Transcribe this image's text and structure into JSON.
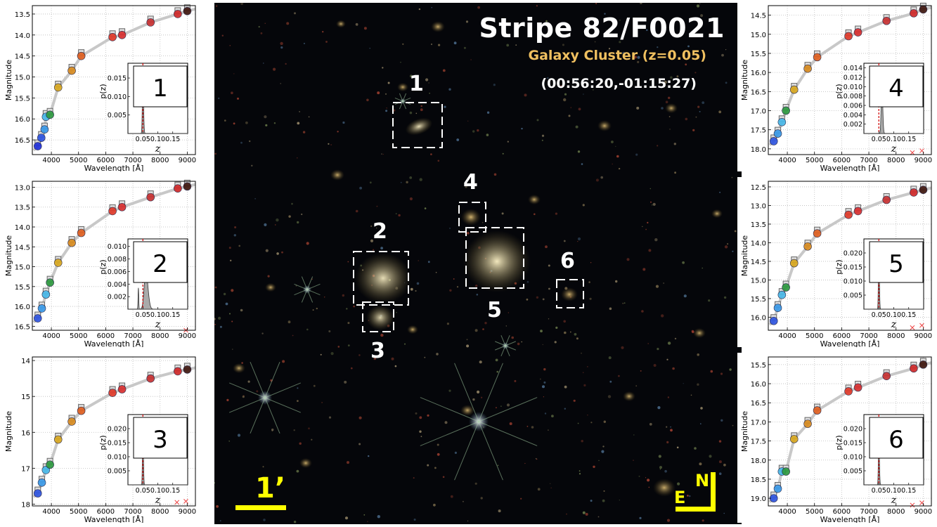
{
  "image": {
    "title": "Stripe 82/F0021",
    "subtitle": "Galaxy Cluster (z=0.05)",
    "coords": "(00:56:20,-01:15:27)",
    "scale_label": "1’",
    "compass_n": "N",
    "compass_e": "E",
    "labels": [
      "1",
      "2",
      "3",
      "4",
      "5",
      "6"
    ]
  },
  "chart_data": [
    {
      "type": "scatter",
      "id": "1",
      "inset_label": "1",
      "xlabel": "Wavelength [Å]",
      "ylabel": "Magnitude",
      "ylim": [
        16.85,
        13.3
      ],
      "yticks": [
        "13.5",
        "14.0",
        "14.5",
        "15.0",
        "15.5",
        "16.0",
        "16.5"
      ],
      "ytick_values": [
        13.5,
        14.0,
        14.5,
        15.0,
        15.5,
        16.0,
        16.5
      ],
      "inset": {
        "xlabel": "z",
        "ylabel": "p(z)",
        "yticks": [
          "0.005",
          "0.010",
          "0.015"
        ],
        "ytick_values": [
          0.005,
          0.01,
          0.015
        ],
        "ymax": 0.019,
        "peak": 0.05,
        "peak_h": 0.0145,
        "sigma": 0.0022,
        "secondary": null,
        "redline": 0.05
      },
      "points": [
        [
          3500,
          16.65
        ],
        [
          3630,
          16.45
        ],
        [
          3750,
          16.25
        ],
        [
          3800,
          15.95
        ],
        [
          3950,
          15.9
        ],
        [
          4250,
          15.25
        ],
        [
          4750,
          14.85
        ],
        [
          5100,
          14.5
        ],
        [
          6250,
          14.05
        ],
        [
          6600,
          14.0
        ],
        [
          7650,
          13.7
        ],
        [
          8650,
          13.5
        ],
        [
          9000,
          13.43
        ]
      ],
      "crosses": []
    },
    {
      "type": "scatter",
      "id": "2",
      "inset_label": "2",
      "xlabel": "Wavelength [Å]",
      "ylabel": "Magnitude",
      "ylim": [
        16.6,
        12.85
      ],
      "yticks": [
        "13.0",
        "13.5",
        "14.0",
        "14.5",
        "15.0",
        "15.5",
        "16.0",
        "16.5"
      ],
      "ytick_values": [
        13.0,
        13.5,
        14.0,
        14.5,
        15.0,
        15.5,
        16.0,
        16.5
      ],
      "inset": {
        "xlabel": "z",
        "ylabel": "p(z)",
        "yticks": [
          "0.002",
          "0.004",
          "0.006",
          "0.008",
          "0.010"
        ],
        "ytick_values": [
          0.002,
          0.004,
          0.006,
          0.008,
          0.01
        ],
        "ymax": 0.0112,
        "peak": 0.06,
        "peak_h": 0.006,
        "sigma": 0.007,
        "secondary": [
          0.035,
          0.0034,
          0.0035
        ],
        "redline": 0.05
      },
      "points": [
        [
          3500,
          16.3
        ],
        [
          3650,
          16.05
        ],
        [
          3800,
          15.7
        ],
        [
          3950,
          15.4
        ],
        [
          4250,
          14.9
        ],
        [
          4750,
          14.4
        ],
        [
          5100,
          14.15
        ],
        [
          6250,
          13.6
        ],
        [
          6600,
          13.5
        ],
        [
          7650,
          13.25
        ],
        [
          8650,
          13.03
        ],
        [
          9000,
          12.98
        ]
      ],
      "crosses": [
        [
          8950,
          16.6
        ]
      ]
    },
    {
      "type": "scatter",
      "id": "3",
      "inset_label": "3",
      "xlabel": "Wavelength [Å]",
      "ylabel": "Magnitude",
      "ylim": [
        18.05,
        13.9
      ],
      "yticks": [
        "14",
        "15",
        "16",
        "17",
        "18"
      ],
      "ytick_values": [
        14,
        15,
        16,
        17,
        18
      ],
      "inset": {
        "xlabel": "z",
        "ylabel": "p(z)",
        "yticks": [
          "0.005",
          "0.010",
          "0.015",
          "0.020"
        ],
        "ytick_values": [
          0.005,
          0.01,
          0.015,
          0.02
        ],
        "ymax": 0.025,
        "peak": 0.05,
        "peak_h": 0.019,
        "sigma": 0.0018,
        "secondary": null,
        "redline": 0.05
      },
      "points": [
        [
          3500,
          17.7
        ],
        [
          3650,
          17.4
        ],
        [
          3800,
          17.05
        ],
        [
          3950,
          16.9
        ],
        [
          4250,
          16.2
        ],
        [
          4750,
          15.7
        ],
        [
          5100,
          15.4
        ],
        [
          6250,
          14.9
        ],
        [
          6600,
          14.8
        ],
        [
          7650,
          14.5
        ],
        [
          8650,
          14.3
        ],
        [
          9000,
          14.25
        ]
      ],
      "crosses": [
        [
          8620,
          17.95
        ],
        [
          8950,
          17.92
        ]
      ]
    },
    {
      "type": "scatter",
      "id": "4",
      "inset_label": "4",
      "xlabel": "Wavelength [Å]",
      "ylabel": "Magnitude",
      "ylim": [
        18.15,
        14.25
      ],
      "yticks": [
        "14.5",
        "15.0",
        "15.5",
        "16.0",
        "16.5",
        "17.0",
        "17.5",
        "18.0"
      ],
      "ytick_values": [
        14.5,
        15.0,
        15.5,
        16.0,
        16.5,
        17.0,
        17.5,
        18.0
      ],
      "inset": {
        "xlabel": "z",
        "ylabel": "p(z)",
        "yticks": [
          "0.002",
          "0.004",
          "0.006",
          "0.008",
          "0.010",
          "0.012",
          "0.014"
        ],
        "ytick_values": [
          0.002,
          0.004,
          0.006,
          0.008,
          0.01,
          0.012,
          0.014
        ],
        "ymax": 0.015,
        "peak": 0.06,
        "peak_h": 0.0112,
        "sigma": 0.0028,
        "secondary": null,
        "redline": 0.05
      },
      "points": [
        [
          3500,
          17.8
        ],
        [
          3650,
          17.6
        ],
        [
          3800,
          17.3
        ],
        [
          3950,
          17.0
        ],
        [
          4250,
          16.45
        ],
        [
          4750,
          15.9
        ],
        [
          5100,
          15.6
        ],
        [
          6250,
          15.05
        ],
        [
          6600,
          14.95
        ],
        [
          7650,
          14.65
        ],
        [
          8650,
          14.45
        ],
        [
          9000,
          14.35
        ]
      ],
      "crosses": [
        [
          8600,
          18.1
        ],
        [
          8950,
          18.05
        ]
      ]
    },
    {
      "type": "scatter",
      "id": "5",
      "inset_label": "5",
      "xlabel": "Wavelength [Å]",
      "ylabel": "Magnitude",
      "ylim": [
        16.35,
        12.35
      ],
      "yticks": [
        "12.5",
        "13.0",
        "13.5",
        "14.0",
        "14.5",
        "15.0",
        "15.5",
        "16.0"
      ],
      "ytick_values": [
        12.5,
        13.0,
        13.5,
        14.0,
        14.5,
        15.0,
        15.5,
        16.0
      ],
      "inset": {
        "xlabel": "z",
        "ylabel": "p(z)",
        "yticks": [
          "0.005",
          "0.010",
          "0.015",
          "0.020"
        ],
        "ytick_values": [
          0.005,
          0.01,
          0.015,
          0.02
        ],
        "ymax": 0.025,
        "peak": 0.05,
        "peak_h": 0.0205,
        "sigma": 0.0018,
        "secondary": null,
        "redline": 0.05
      },
      "points": [
        [
          3500,
          16.1
        ],
        [
          3650,
          15.75
        ],
        [
          3800,
          15.4
        ],
        [
          3950,
          15.2
        ],
        [
          4250,
          14.55
        ],
        [
          4750,
          14.1
        ],
        [
          5100,
          13.75
        ],
        [
          6250,
          13.25
        ],
        [
          6600,
          13.15
        ],
        [
          7650,
          12.85
        ],
        [
          8650,
          12.65
        ],
        [
          9000,
          12.58
        ]
      ],
      "crosses": [
        [
          8600,
          16.28
        ],
        [
          8950,
          16.22
        ]
      ]
    },
    {
      "type": "scatter",
      "id": "6",
      "inset_label": "6",
      "xlabel": "Wavelength [Å]",
      "ylabel": "Magnitude",
      "ylim": [
        19.2,
        15.3
      ],
      "yticks": [
        "15.5",
        "16.0",
        "16.5",
        "17.0",
        "17.5",
        "18.0",
        "18.5",
        "19.0"
      ],
      "ytick_values": [
        15.5,
        16.0,
        16.5,
        17.0,
        17.5,
        18.0,
        18.5,
        19.0
      ],
      "inset": {
        "xlabel": "z",
        "ylabel": "p(z)",
        "yticks": [
          "0.005",
          "0.010",
          "0.015",
          "0.020"
        ],
        "ytick_values": [
          0.005,
          0.01,
          0.015,
          0.02
        ],
        "ymax": 0.025,
        "peak": 0.05,
        "peak_h": 0.016,
        "sigma": 0.0019,
        "secondary": null,
        "redline": 0.05
      },
      "points": [
        [
          3500,
          19.0
        ],
        [
          3650,
          18.75
        ],
        [
          3800,
          18.3
        ],
        [
          3950,
          18.3
        ],
        [
          4250,
          17.45
        ],
        [
          4750,
          17.05
        ],
        [
          5100,
          16.7
        ],
        [
          6250,
          16.2
        ],
        [
          6600,
          16.1
        ],
        [
          7650,
          15.8
        ],
        [
          8650,
          15.6
        ],
        [
          9000,
          15.5
        ]
      ],
      "crosses": [
        [
          8600,
          19.18
        ],
        [
          8950,
          19.12
        ]
      ]
    }
  ],
  "panel_axis": {
    "xlim": [
      3300,
      9300
    ],
    "xticks": [
      "4000",
      "5000",
      "6000",
      "7000",
      "8000",
      "9000"
    ],
    "xtick_values": [
      4000,
      5000,
      6000,
      7000,
      8000,
      9000
    ],
    "inset_xlim": [
      0,
      0.2
    ],
    "inset_xticks": [
      "0.05",
      "0.10",
      "0.15"
    ],
    "inset_xtick_values": [
      0.05,
      0.1,
      0.15
    ]
  },
  "colors": {
    "filters": [
      "#2030d8",
      "#2f55e0",
      "#3a9ae8",
      "#48b8e8",
      "#2e9a40",
      "#d8a820",
      "#d88c20",
      "#e06020",
      "#e03a2a",
      "#d83030",
      "#c83232",
      "#d02a2a",
      "#401810"
    ],
    "curve": "#c8c8c8",
    "redline": "#d00000",
    "box": "#ffffff",
    "title": "#ffffff",
    "subtitle": "#f0c060",
    "scale": "#ffff00"
  }
}
